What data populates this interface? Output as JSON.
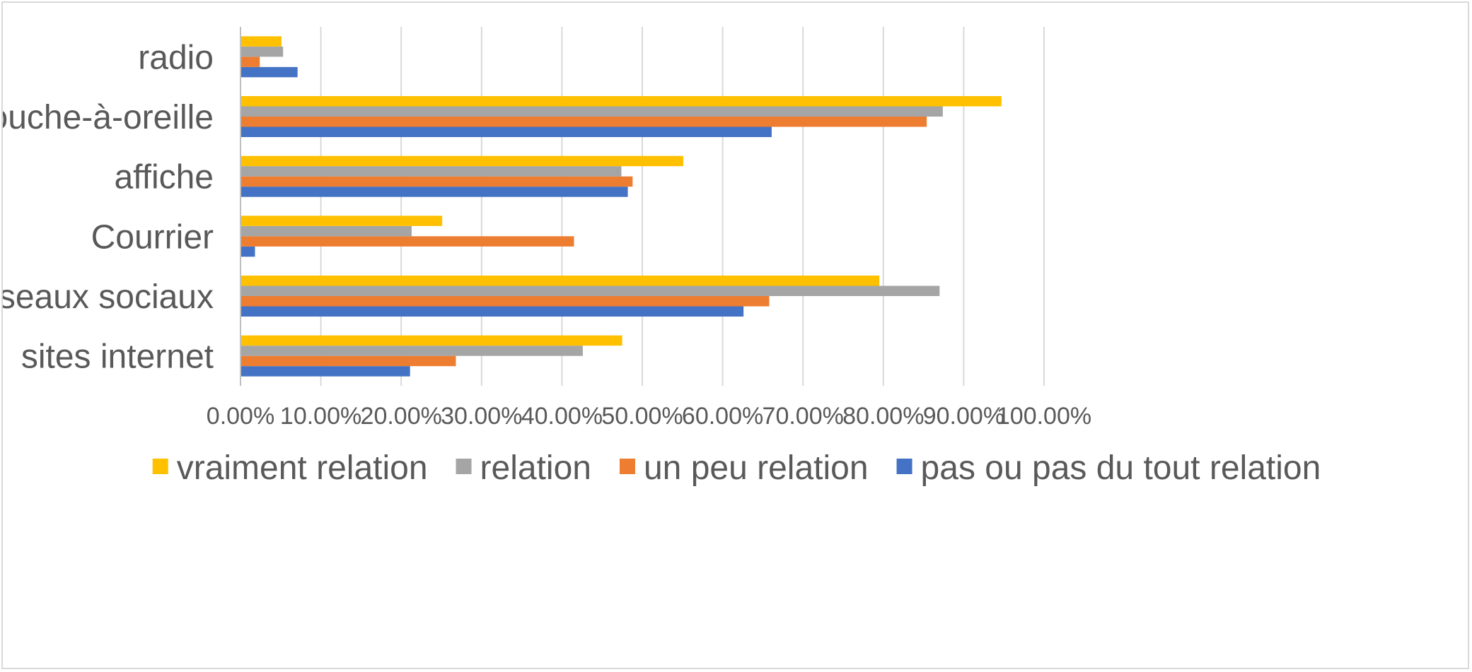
{
  "chart_data": {
    "type": "bar",
    "orientation": "horizontal",
    "categories": [
      "sites internet",
      "réseaux sociaux",
      "Courrier",
      "affiche",
      "bouche-à-oreille",
      "radio"
    ],
    "series": [
      {
        "name": "pas ou pas du tout relation",
        "color": "#4472c4",
        "values": [
          21.1,
          62.6,
          1.8,
          48.2,
          66.1,
          7.1
        ]
      },
      {
        "name": "un peu relation",
        "color": "#ed7d31",
        "values": [
          26.8,
          65.8,
          41.5,
          48.8,
          85.4,
          2.4
        ]
      },
      {
        "name": "relation",
        "color": "#a5a5a5",
        "values": [
          42.6,
          87.0,
          21.3,
          47.4,
          87.4,
          5.3
        ]
      },
      {
        "name": "vraiment relation",
        "color": "#ffc000",
        "values": [
          47.5,
          79.5,
          25.1,
          55.1,
          94.7,
          5.1
        ]
      }
    ],
    "legend_order": [
      "vraiment relation",
      "relation",
      "un peu relation",
      "pas ou pas du tout relation"
    ],
    "xlim": [
      0,
      100
    ],
    "x_ticks": [
      "0.00%",
      "10.00%",
      "20.00%",
      "30.00%",
      "40.00%",
      "50.00%",
      "60.00%",
      "70.00%",
      "80.00%",
      "90.00%",
      "100.00%"
    ],
    "title": "",
    "xlabel": "",
    "ylabel": "",
    "grid": true,
    "legend_position": "bottom"
  }
}
